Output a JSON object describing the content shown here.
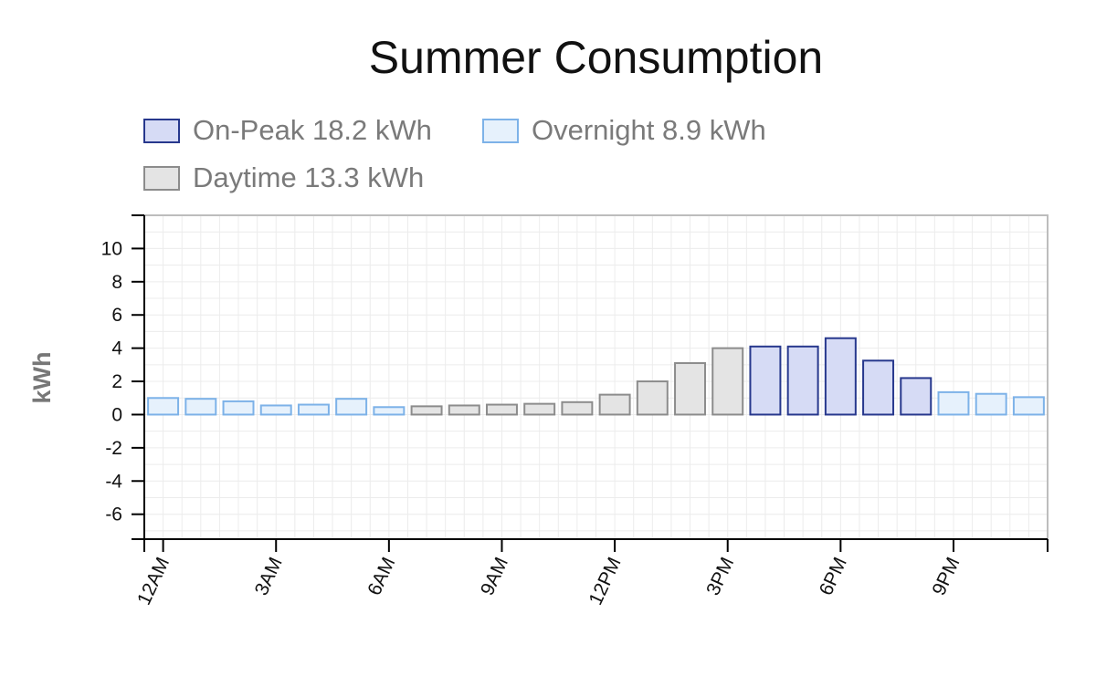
{
  "chart_data": {
    "type": "bar",
    "title": "Summer Consumption",
    "xlabel": "",
    "ylabel": "kWh",
    "ylim": [
      -7.5,
      12
    ],
    "yticks": [
      10,
      8,
      6,
      4,
      2,
      0,
      -2,
      -4,
      -6
    ],
    "xtick_labels": [
      "12AM",
      "3AM",
      "6AM",
      "9AM",
      "12PM",
      "3PM",
      "6PM",
      "9PM"
    ],
    "categories": [
      "12AM",
      "1AM",
      "2AM",
      "3AM",
      "4AM",
      "5AM",
      "6AM",
      "7AM",
      "8AM",
      "9AM",
      "10AM",
      "11AM",
      "12PM",
      "1PM",
      "2PM",
      "3PM",
      "4PM",
      "5PM",
      "6PM",
      "7PM",
      "8PM",
      "9PM",
      "10PM",
      "11PM"
    ],
    "values": [
      1.0,
      0.95,
      0.8,
      0.55,
      0.6,
      0.95,
      0.45,
      0.5,
      0.55,
      0.6,
      0.65,
      0.75,
      1.2,
      2.0,
      3.1,
      4.0,
      4.1,
      4.1,
      4.6,
      3.25,
      2.2,
      1.35,
      1.25,
      1.05
    ],
    "periods": [
      "overnight",
      "overnight",
      "overnight",
      "overnight",
      "overnight",
      "overnight",
      "overnight",
      "daytime",
      "daytime",
      "daytime",
      "daytime",
      "daytime",
      "daytime",
      "daytime",
      "daytime",
      "daytime",
      "onpeak",
      "onpeak",
      "onpeak",
      "onpeak",
      "onpeak",
      "overnight",
      "overnight",
      "overnight"
    ],
    "legend": {
      "placement": "top",
      "onpeak": {
        "label": "On-Peak 18.2 kWh",
        "fill": "#d6dbf5",
        "stroke": "#27388d"
      },
      "overnight": {
        "label": "Overnight 8.9 kWh",
        "fill": "#e6f1fc",
        "stroke": "#7db2e8"
      },
      "daytime": {
        "label": "Daytime 13.3 kWh",
        "fill": "#e4e4e4",
        "stroke": "#8c8c8c"
      }
    },
    "grid": true
  }
}
